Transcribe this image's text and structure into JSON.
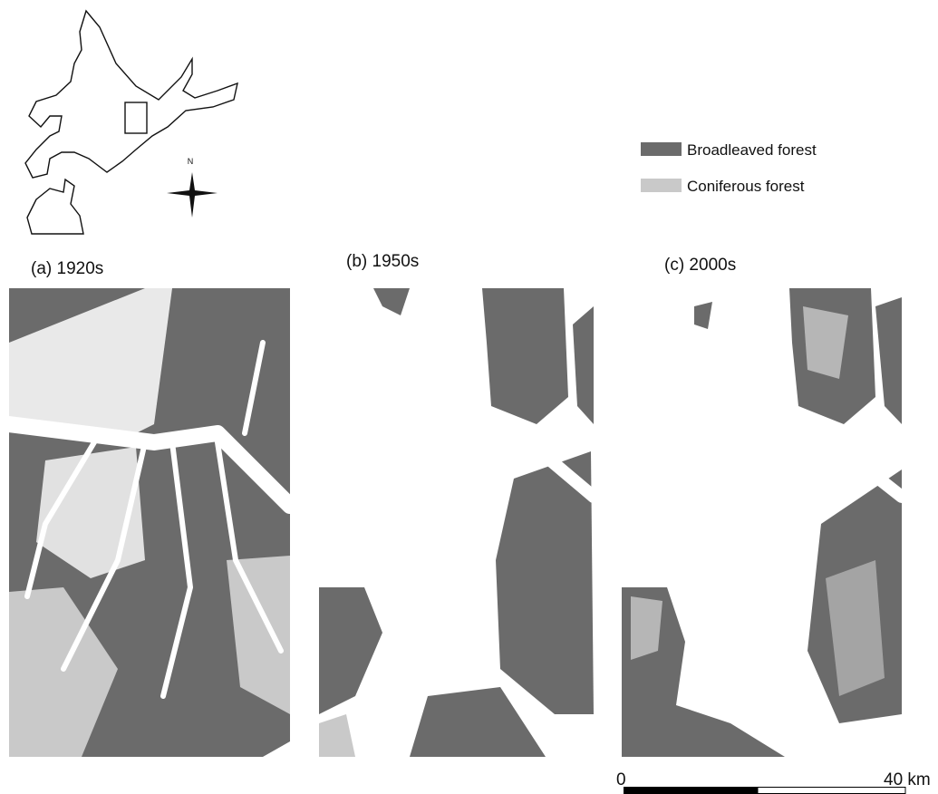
{
  "inset": {
    "north": "N"
  },
  "legend": [
    {
      "label": "Broadleaved forest",
      "color": "#6b6b6b"
    },
    {
      "label": "Coniferous forest",
      "color": "#c9c9c9"
    }
  ],
  "panels": [
    {
      "title": "(a) 1920s"
    },
    {
      "title": "(b) 1950s"
    },
    {
      "title": "(c) 2000s"
    }
  ],
  "scale": {
    "start": "0",
    "end": "40 km"
  }
}
